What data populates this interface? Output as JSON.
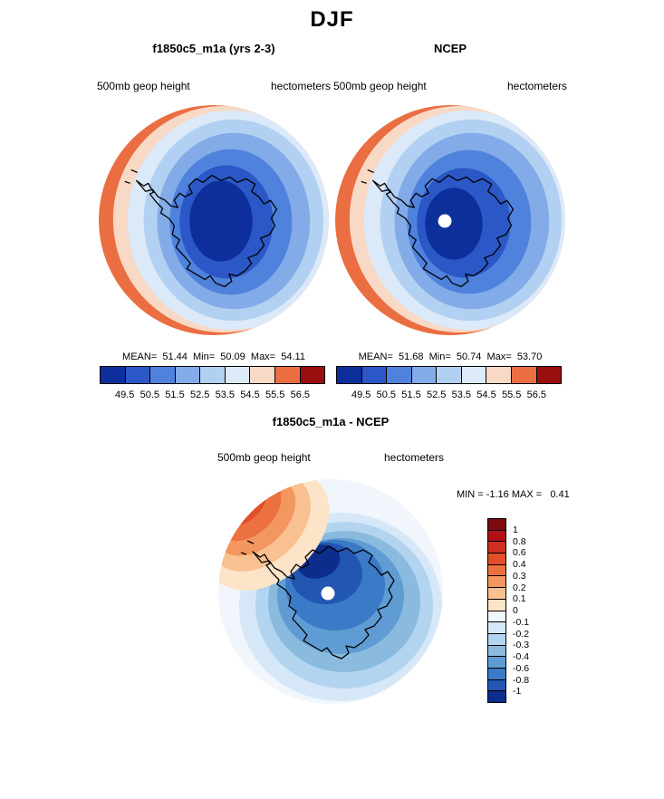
{
  "page": {
    "title": "DJF"
  },
  "panels": {
    "model": {
      "title": "f1850c5_m1a (yrs 2-3)",
      "field": "500mb geop height",
      "units": "hectometers",
      "stats": "MEAN=  51.44  Min=  50.09  Max=  54.11"
    },
    "obs": {
      "title": "NCEP",
      "field": "500mb geop height",
      "units": "hectometers",
      "stats": "MEAN=  51.68  Min=  50.74  Max=  53.70"
    },
    "diff": {
      "title": "f1850c5_m1a - NCEP",
      "field": "500mb geop height",
      "units": "hectometers",
      "minmax": "MIN = -1.16 MAX =   0.41"
    }
  },
  "colorbars": {
    "height": {
      "orientation": "horizontal",
      "ticks": [
        "49.5",
        "50.5",
        "51.5",
        "52.5",
        "53.5",
        "54.5",
        "55.5",
        "56.5"
      ],
      "colors": [
        "#0d2f9b",
        "#2b57c7",
        "#4f82dc",
        "#82abe8",
        "#b2d0f1",
        "#dbe9f8",
        "#f8d9c5",
        "#ea6e42",
        "#990f0f"
      ]
    },
    "diff": {
      "orientation": "vertical",
      "ticks": [
        "1",
        "0.8",
        "0.6",
        "0.4",
        "0.3",
        "0.2",
        "0.1",
        "0",
        "-0.1",
        "-0.2",
        "-0.3",
        "-0.4",
        "-0.6",
        "-0.8",
        "-1"
      ],
      "colors": [
        "#7d0a0e",
        "#b01117",
        "#ce2f1e",
        "#e04f28",
        "#ec7140",
        "#f4965f",
        "#f9c091",
        "#fde3c8",
        "#f0f6fc",
        "#d6e8f7",
        "#b3d4ef",
        "#8abade",
        "#5f9cd3",
        "#3b7ac6",
        "#2156b2",
        "#0d2d8c"
      ]
    }
  },
  "chart_data": [
    {
      "type": "heatmap",
      "subtype": "filled-contour polar stereographic map",
      "panel": "top-left",
      "title": "f1850c5_m1a (yrs 2-3)",
      "season": "DJF",
      "variable": "500mb geop height",
      "units": "hectometers",
      "region": "Southern Hemisphere / Antarctica",
      "stats": {
        "mean": 51.44,
        "min": 50.09,
        "max": 54.11
      },
      "contour_levels": [
        49.5,
        50.5,
        51.5,
        52.5,
        53.5,
        54.5,
        55.5,
        56.5
      ],
      "palette": [
        "#0d2f9b",
        "#2b57c7",
        "#4f82dc",
        "#82abe8",
        "#b2d0f1",
        "#dbe9f8",
        "#f8d9c5",
        "#ea6e42",
        "#990f0f"
      ],
      "legend_position": "below",
      "pattern": "low geopotential (dark blue) centered over Antarctica, values increasing outward; warm colors (salmon) only along left rim"
    },
    {
      "type": "heatmap",
      "subtype": "filled-contour polar stereographic map",
      "panel": "top-right",
      "title": "NCEP",
      "season": "DJF",
      "variable": "500mb geop height",
      "units": "hectometers",
      "region": "Southern Hemisphere / Antarctica",
      "stats": {
        "mean": 51.68,
        "min": 50.74,
        "max": 53.7
      },
      "contour_levels": [
        49.5,
        50.5,
        51.5,
        52.5,
        53.5,
        54.5,
        55.5,
        56.5
      ],
      "palette": [
        "#0d2f9b",
        "#2b57c7",
        "#4f82dc",
        "#82abe8",
        "#b2d0f1",
        "#dbe9f8",
        "#f8d9c5",
        "#ea6e42",
        "#990f0f"
      ],
      "legend_position": "below",
      "pole_hole": true,
      "pattern": "same structure as model panel with smaller dark-blue core; white dot (missing data) at pole"
    },
    {
      "type": "heatmap",
      "subtype": "filled-contour polar stereographic map (difference)",
      "panel": "bottom",
      "title": "f1850c5_m1a - NCEP",
      "season": "DJF",
      "variable": "500mb geop height",
      "units": "hectometers",
      "region": "Southern Hemisphere / Antarctica",
      "stats": {
        "min": -1.16,
        "max": 0.41
      },
      "contour_levels": [
        -1,
        -0.8,
        -0.6,
        -0.4,
        -0.3,
        -0.2,
        -0.1,
        0,
        0.1,
        0.2,
        0.3,
        0.4,
        0.6,
        0.8,
        1
      ],
      "palette": [
        "#7d0a0e",
        "#b01117",
        "#ce2f1e",
        "#e04f28",
        "#ec7140",
        "#f4965f",
        "#f9c091",
        "#fde3c8",
        "#f0f6fc",
        "#d6e8f7",
        "#b3d4ef",
        "#8abade",
        "#5f9cd3",
        "#3b7ac6",
        "#2156b2",
        "#0d2d8c"
      ],
      "legend_position": "right",
      "pole_hole": true,
      "pattern": "negative differences (blues) over most of the dome with darkest minimum just above pole; positive lobe (orange-red) along upper-left rim"
    }
  ]
}
